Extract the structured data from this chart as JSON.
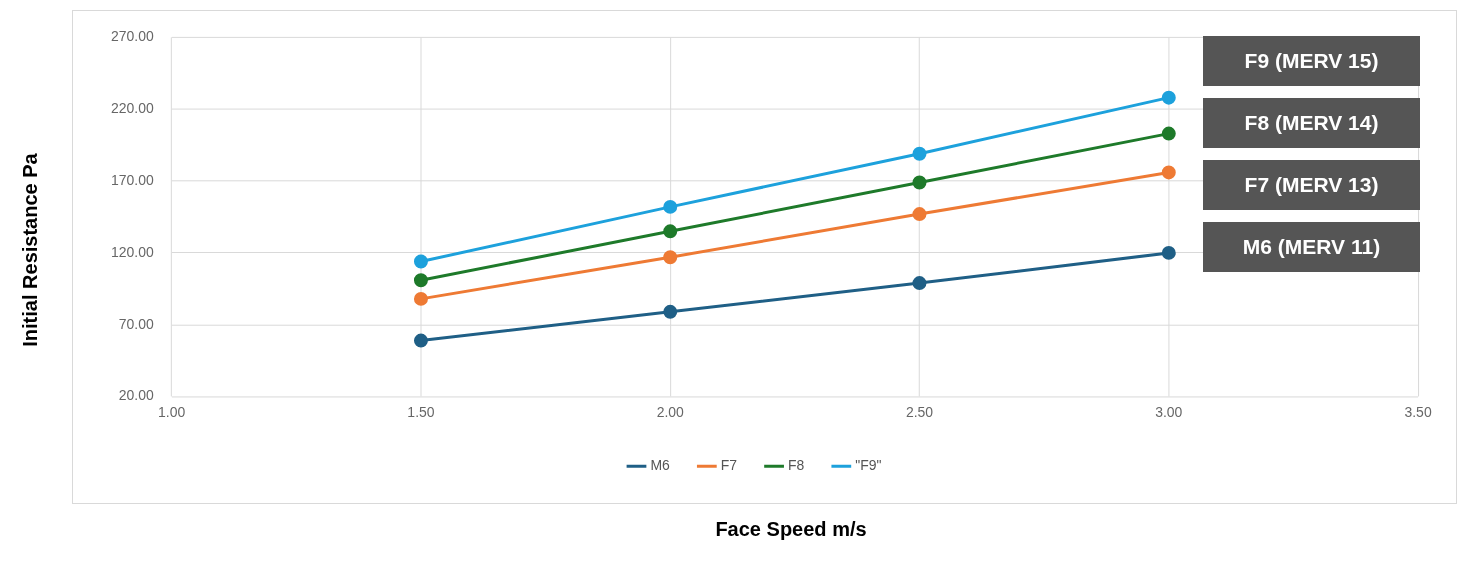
{
  "chart_data": {
    "type": "line",
    "xlabel": "Face Speed m/s",
    "ylabel": "Initial Resistance Pa",
    "x": [
      1.5,
      2.0,
      2.5,
      3.0
    ],
    "series": [
      {
        "name": "M6",
        "color": "#1f5f86",
        "values": [
          59,
          79,
          99,
          120
        ]
      },
      {
        "name": "F7",
        "color": "#ee7a34",
        "values": [
          88,
          117,
          147,
          176
        ]
      },
      {
        "name": "F8",
        "color": "#1e7a2a",
        "values": [
          101,
          135,
          169,
          203
        ]
      },
      {
        "name": "\"F9\"",
        "color": "#1da1dc",
        "values": [
          114,
          152,
          189,
          228
        ]
      }
    ],
    "xlim": [
      1.0,
      3.5
    ],
    "xticks": [
      {
        "value": 1.0,
        "label": "1.00"
      },
      {
        "value": 1.5,
        "label": "1.50"
      },
      {
        "value": 2.0,
        "label": "2.00"
      },
      {
        "value": 2.5,
        "label": "2.50"
      },
      {
        "value": 3.0,
        "label": "3.00"
      },
      {
        "value": 3.5,
        "label": "3.50"
      }
    ],
    "ylim": [
      20,
      270
    ],
    "yticks": [
      {
        "value": 20,
        "label": "20.00"
      },
      {
        "value": 70,
        "label": "70.00"
      },
      {
        "value": 120,
        "label": "120.00"
      },
      {
        "value": 170,
        "label": "170.00"
      },
      {
        "value": 220,
        "label": "220.00"
      },
      {
        "value": 270,
        "label": "270.00"
      }
    ],
    "annotations": [
      "F9 (MERV 15)",
      "F8 (MERV 14)",
      "F7 (MERV 13)",
      "M6 (MERV 11)"
    ],
    "grid": true,
    "legend": "bottom",
    "marker": "circle",
    "line_style": "solid"
  }
}
